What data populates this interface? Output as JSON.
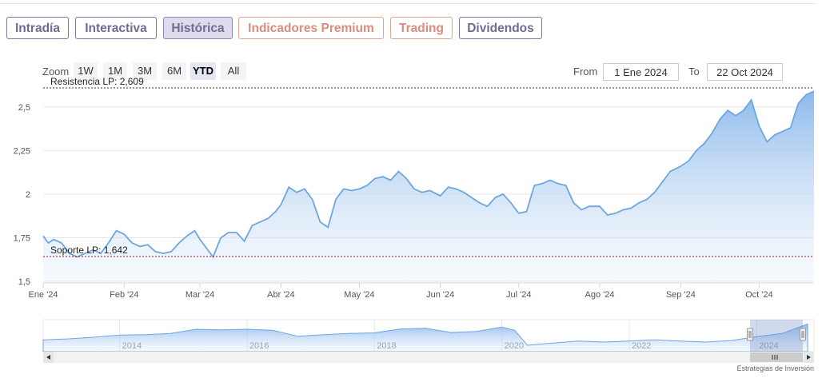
{
  "tabs": [
    {
      "label": "Intradía",
      "style": "purple"
    },
    {
      "label": "Interactiva",
      "style": "purple"
    },
    {
      "label": "Histórica",
      "style": "active"
    },
    {
      "label": "Indicadores Premium",
      "style": "salmon"
    },
    {
      "label": "Trading",
      "style": "salmon"
    },
    {
      "label": "Dividendos",
      "style": "purple"
    }
  ],
  "zoom": {
    "label": "Zoom",
    "buttons": [
      "1W",
      "1M",
      "3M",
      "6M",
      "YTD",
      "All"
    ],
    "selected": "YTD"
  },
  "range": {
    "from_label": "From",
    "from_value": "1 Ene 2024",
    "to_label": "To",
    "to_value": "22 Oct 2024"
  },
  "credit": "Estrategias de Inversión",
  "colors": {
    "line": "#6ea6df",
    "fill_top": "#86b6ea",
    "resistance": "#333333",
    "support": "#8b1a1a",
    "tab_purple": "#6f6c92",
    "tab_salmon": "#d98d7c"
  },
  "chart_data": {
    "type": "area",
    "title": "",
    "xlabel": "",
    "ylabel": "",
    "ylim": [
      1.5,
      2.6
    ],
    "y_ticks": [
      1.5,
      1.75,
      2,
      2.25,
      2.5
    ],
    "y_tick_labels": [
      "1,5",
      "1,75",
      "2",
      "2,25",
      "2,5"
    ],
    "x_tick_labels": [
      "Ene '24",
      "Feb '24",
      "Mar '24",
      "Abr '24",
      "May '24",
      "Jun '24",
      "Jul '24",
      "Ago '24",
      "Sep '24",
      "Oct '24"
    ],
    "x_tick_dates": [
      "2024-01-01",
      "2024-02-01",
      "2024-03-01",
      "2024-04-01",
      "2024-05-01",
      "2024-06-01",
      "2024-07-01",
      "2024-08-01",
      "2024-09-01",
      "2024-10-01"
    ],
    "grid": true,
    "reference_lines": [
      {
        "label": "Resistencia LP: 2,609",
        "value": 2.609,
        "style": "dotted",
        "color": "#333333"
      },
      {
        "label": "Soporte LP: 1,642",
        "value": 1.642,
        "style": "dotted",
        "color": "#8b1a1a"
      }
    ],
    "series": [
      {
        "x": [
          "2024-01-01",
          "2024-01-03",
          "2024-01-05",
          "2024-01-08",
          "2024-01-11",
          "2024-01-14",
          "2024-01-17",
          "2024-01-20",
          "2024-01-23",
          "2024-01-26",
          "2024-01-29",
          "2024-02-01",
          "2024-02-04",
          "2024-02-07",
          "2024-02-10",
          "2024-02-13",
          "2024-02-16",
          "2024-02-19",
          "2024-02-22",
          "2024-02-25",
          "2024-02-28",
          "2024-03-01",
          "2024-03-03",
          "2024-03-06",
          "2024-03-09",
          "2024-03-12",
          "2024-03-15",
          "2024-03-18",
          "2024-03-21",
          "2024-03-24",
          "2024-03-27",
          "2024-03-30",
          "2024-04-01",
          "2024-04-04",
          "2024-04-07",
          "2024-04-10",
          "2024-04-13",
          "2024-04-16",
          "2024-04-19",
          "2024-04-22",
          "2024-04-25",
          "2024-04-28",
          "2024-05-01",
          "2024-05-04",
          "2024-05-07",
          "2024-05-10",
          "2024-05-13",
          "2024-05-16",
          "2024-05-19",
          "2024-05-22",
          "2024-05-25",
          "2024-05-28",
          "2024-06-01",
          "2024-06-04",
          "2024-06-07",
          "2024-06-10",
          "2024-06-13",
          "2024-06-16",
          "2024-06-19",
          "2024-06-22",
          "2024-06-25",
          "2024-06-28",
          "2024-07-01",
          "2024-07-04",
          "2024-07-07",
          "2024-07-10",
          "2024-07-13",
          "2024-07-16",
          "2024-07-19",
          "2024-07-22",
          "2024-07-25",
          "2024-07-28",
          "2024-08-01",
          "2024-08-04",
          "2024-08-07",
          "2024-08-10",
          "2024-08-13",
          "2024-08-16",
          "2024-08-19",
          "2024-08-22",
          "2024-08-25",
          "2024-08-28",
          "2024-09-01",
          "2024-09-04",
          "2024-09-07",
          "2024-09-10",
          "2024-09-13",
          "2024-09-16",
          "2024-09-19",
          "2024-09-22",
          "2024-09-25",
          "2024-09-28",
          "2024-10-01",
          "2024-10-04",
          "2024-10-07",
          "2024-10-10",
          "2024-10-13",
          "2024-10-16",
          "2024-10-19",
          "2024-10-22"
        ],
        "y": [
          1.76,
          1.72,
          1.74,
          1.72,
          1.66,
          1.64,
          1.66,
          1.68,
          1.66,
          1.72,
          1.79,
          1.77,
          1.72,
          1.7,
          1.71,
          1.67,
          1.66,
          1.67,
          1.72,
          1.76,
          1.79,
          1.74,
          1.7,
          1.64,
          1.75,
          1.78,
          1.78,
          1.73,
          1.82,
          1.84,
          1.86,
          1.9,
          1.94,
          2.04,
          2.01,
          2.03,
          1.97,
          1.84,
          1.81,
          1.97,
          2.03,
          2.02,
          2.03,
          2.05,
          2.09,
          2.1,
          2.08,
          2.13,
          2.09,
          2.03,
          2.01,
          2.02,
          1.99,
          2.04,
          2.03,
          2.01,
          1.98,
          1.95,
          1.93,
          1.98,
          2.0,
          1.95,
          1.89,
          1.9,
          2.05,
          2.06,
          2.08,
          2.06,
          2.05,
          1.95,
          1.91,
          1.93,
          1.93,
          1.88,
          1.89,
          1.91,
          1.92,
          1.95,
          1.97,
          2.01,
          2.07,
          2.13,
          2.16,
          2.19,
          2.25,
          2.29,
          2.35,
          2.43,
          2.48,
          2.45,
          2.48,
          2.54,
          2.39,
          2.3,
          2.34,
          2.36,
          2.38,
          2.52,
          2.57,
          2.59
        ]
      }
    ],
    "navigator": {
      "x_tick_labels": [
        "2014",
        "2016",
        "2018",
        "2020",
        "2022",
        "2024"
      ],
      "years": [
        2012.8,
        2013.2,
        2013.6,
        2014.0,
        2014.4,
        2014.8,
        2015.2,
        2015.6,
        2016.0,
        2016.4,
        2016.8,
        2017.2,
        2017.6,
        2018.0,
        2018.4,
        2018.8,
        2019.2,
        2019.6,
        2020.0,
        2020.2,
        2020.4,
        2020.8,
        2021.2,
        2021.6,
        2022.0,
        2022.4,
        2022.8,
        2023.2,
        2023.6,
        2024.0,
        2024.4,
        2024.8
      ],
      "values": [
        1.55,
        1.6,
        1.68,
        1.78,
        1.8,
        1.85,
        2.05,
        2.02,
        2.05,
        2.0,
        1.72,
        1.8,
        1.85,
        1.88,
        2.06,
        2.1,
        1.9,
        1.95,
        2.15,
        2.0,
        1.3,
        1.4,
        1.5,
        1.45,
        1.5,
        1.55,
        1.5,
        1.45,
        1.52,
        1.7,
        1.85,
        2.3
      ],
      "ylim": [
        1.0,
        2.5
      ]
    }
  }
}
